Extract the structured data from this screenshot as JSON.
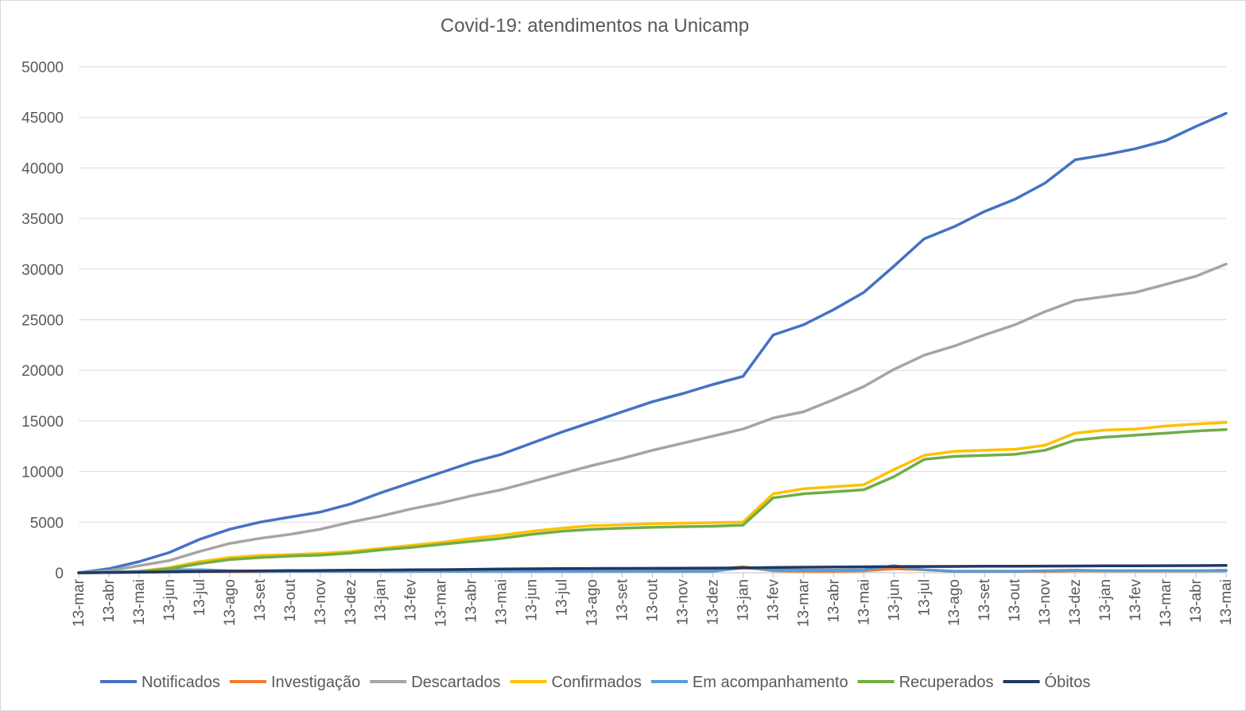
{
  "chart_data": {
    "type": "line",
    "title": "Covid-19: atendimentos na Unicamp",
    "xlabel": "",
    "ylabel": "",
    "ylim": [
      0,
      50000
    ],
    "yticks": [
      0,
      5000,
      10000,
      15000,
      20000,
      25000,
      30000,
      35000,
      40000,
      45000,
      50000
    ],
    "x_tick_labels": [
      "13-mar",
      "13-abr",
      "13-mai",
      "13-jun",
      "13-jul",
      "13-ago",
      "13-set",
      "13-out",
      "13-nov",
      "13-dez",
      "13-jan",
      "13-fev",
      "13-mar",
      "13-abr",
      "13-mai",
      "13-jun",
      "13-jul",
      "13-ago",
      "13-set",
      "13-out",
      "13-nov",
      "13-dez",
      "13-jan",
      "13-fev",
      "13-mar",
      "13-abr",
      "13-mai",
      "13-jun",
      "13-jul",
      "13-ago",
      "13-set",
      "13-out",
      "13-nov",
      "13-dez",
      "13-jan",
      "13-fev",
      "13-mar",
      "13-abr",
      "13-mai"
    ],
    "grid": true,
    "legend_position": "bottom",
    "series": [
      {
        "name": "Notificados",
        "color": "#4472C4",
        "values": [
          0,
          400,
          1100,
          2000,
          3300,
          4300,
          5000,
          5500,
          6000,
          6800,
          7900,
          8900,
          9900,
          10900,
          11700,
          12800,
          13900,
          14900,
          15900,
          16900,
          17700,
          18600,
          19400,
          23500,
          24500,
          26000,
          27700,
          30300,
          33000,
          34200,
          35700,
          36900,
          38500,
          40800,
          41300,
          41900,
          42700,
          44100,
          45400
        ]
      },
      {
        "name": "Investigação",
        "color": "#ED7D31",
        "values": [
          0,
          30,
          60,
          80,
          100,
          110,
          120,
          130,
          150,
          170,
          190,
          200,
          210,
          220,
          230,
          240,
          250,
          260,
          270,
          280,
          290,
          300,
          600,
          200,
          150,
          150,
          200,
          400,
          300,
          150,
          150,
          150,
          150,
          200,
          200,
          200,
          200,
          200,
          250
        ]
      },
      {
        "name": "Descartados",
        "color": "#A5A5A5",
        "values": [
          0,
          200,
          700,
          1200,
          2100,
          2900,
          3400,
          3800,
          4300,
          5000,
          5600,
          6300,
          6900,
          7600,
          8200,
          9000,
          9800,
          10600,
          11300,
          12100,
          12800,
          13500,
          14200,
          15300,
          15900,
          17100,
          18400,
          20100,
          21500,
          22400,
          23500,
          24500,
          25800,
          26900,
          27300,
          27700,
          28500,
          29300,
          30500
        ]
      },
      {
        "name": "Confirmados",
        "color": "#FFC000",
        "values": [
          0,
          30,
          150,
          500,
          1100,
          1500,
          1700,
          1800,
          1900,
          2100,
          2400,
          2700,
          3000,
          3400,
          3700,
          4100,
          4400,
          4650,
          4750,
          4850,
          4900,
          4950,
          5000,
          7800,
          8300,
          8500,
          8700,
          10200,
          11600,
          12000,
          12100,
          12200,
          12600,
          13800,
          14100,
          14200,
          14500,
          14700,
          14850
        ]
      },
      {
        "name": "Em acompanhamento",
        "color": "#5B9BD5",
        "values": [
          0,
          50,
          150,
          300,
          300,
          200,
          150,
          150,
          150,
          150,
          150,
          150,
          150,
          150,
          150,
          150,
          150,
          150,
          150,
          150,
          150,
          150,
          500,
          300,
          250,
          250,
          300,
          700,
          300,
          150,
          150,
          150,
          200,
          250,
          200,
          200,
          200,
          200,
          200
        ]
      },
      {
        "name": "Recuperados",
        "color": "#70AD47",
        "values": [
          0,
          20,
          100,
          400,
          900,
          1300,
          1500,
          1650,
          1750,
          1950,
          2250,
          2500,
          2800,
          3100,
          3400,
          3800,
          4100,
          4300,
          4400,
          4500,
          4550,
          4600,
          4700,
          7400,
          7800,
          8000,
          8200,
          9500,
          11200,
          11500,
          11600,
          11700,
          12100,
          13100,
          13400,
          13600,
          13800,
          14000,
          14150
        ]
      },
      {
        "name": "Óbitos",
        "color": "#203864",
        "values": [
          0,
          30,
          60,
          100,
          130,
          160,
          190,
          210,
          230,
          250,
          270,
          290,
          310,
          340,
          370,
          390,
          410,
          420,
          430,
          440,
          450,
          460,
          480,
          520,
          550,
          570,
          590,
          610,
          620,
          630,
          640,
          650,
          660,
          670,
          680,
          690,
          700,
          710,
          720
        ]
      }
    ]
  }
}
